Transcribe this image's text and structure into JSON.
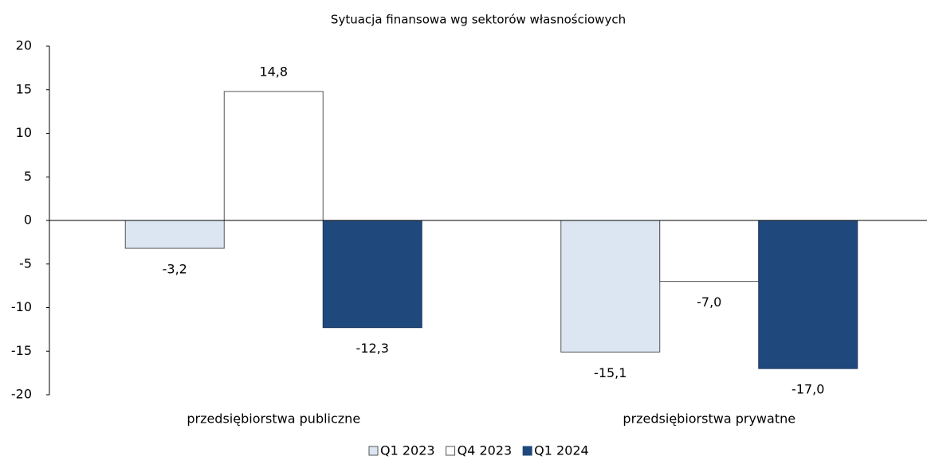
{
  "chart_data": {
    "type": "bar",
    "title": "Sytuacja finansowa wg sektorów własnościowych",
    "categories": [
      "przedsiębiorstwa publiczne",
      "przedsiębiorstwa prywatne"
    ],
    "series": [
      {
        "name": "Q1 2023",
        "color": "#dce6f2",
        "values": [
          -3.2,
          -15.1
        ],
        "value_labels": [
          "-3,2",
          "-15,1"
        ]
      },
      {
        "name": "Q4 2023",
        "color": "#ffffff",
        "values": [
          14.8,
          -7.0
        ],
        "value_labels": [
          "14,8",
          "-7,0"
        ]
      },
      {
        "name": "Q1 2024",
        "color": "#1f497d",
        "values": [
          -12.3,
          -17.0
        ],
        "value_labels": [
          "-12,3",
          "-17,0"
        ]
      }
    ],
    "ylim": [
      -20,
      20
    ],
    "yticks": [
      20,
      15,
      10,
      5,
      0,
      -5,
      -10,
      -15,
      -20
    ],
    "grid": false,
    "legend": "bottom"
  }
}
